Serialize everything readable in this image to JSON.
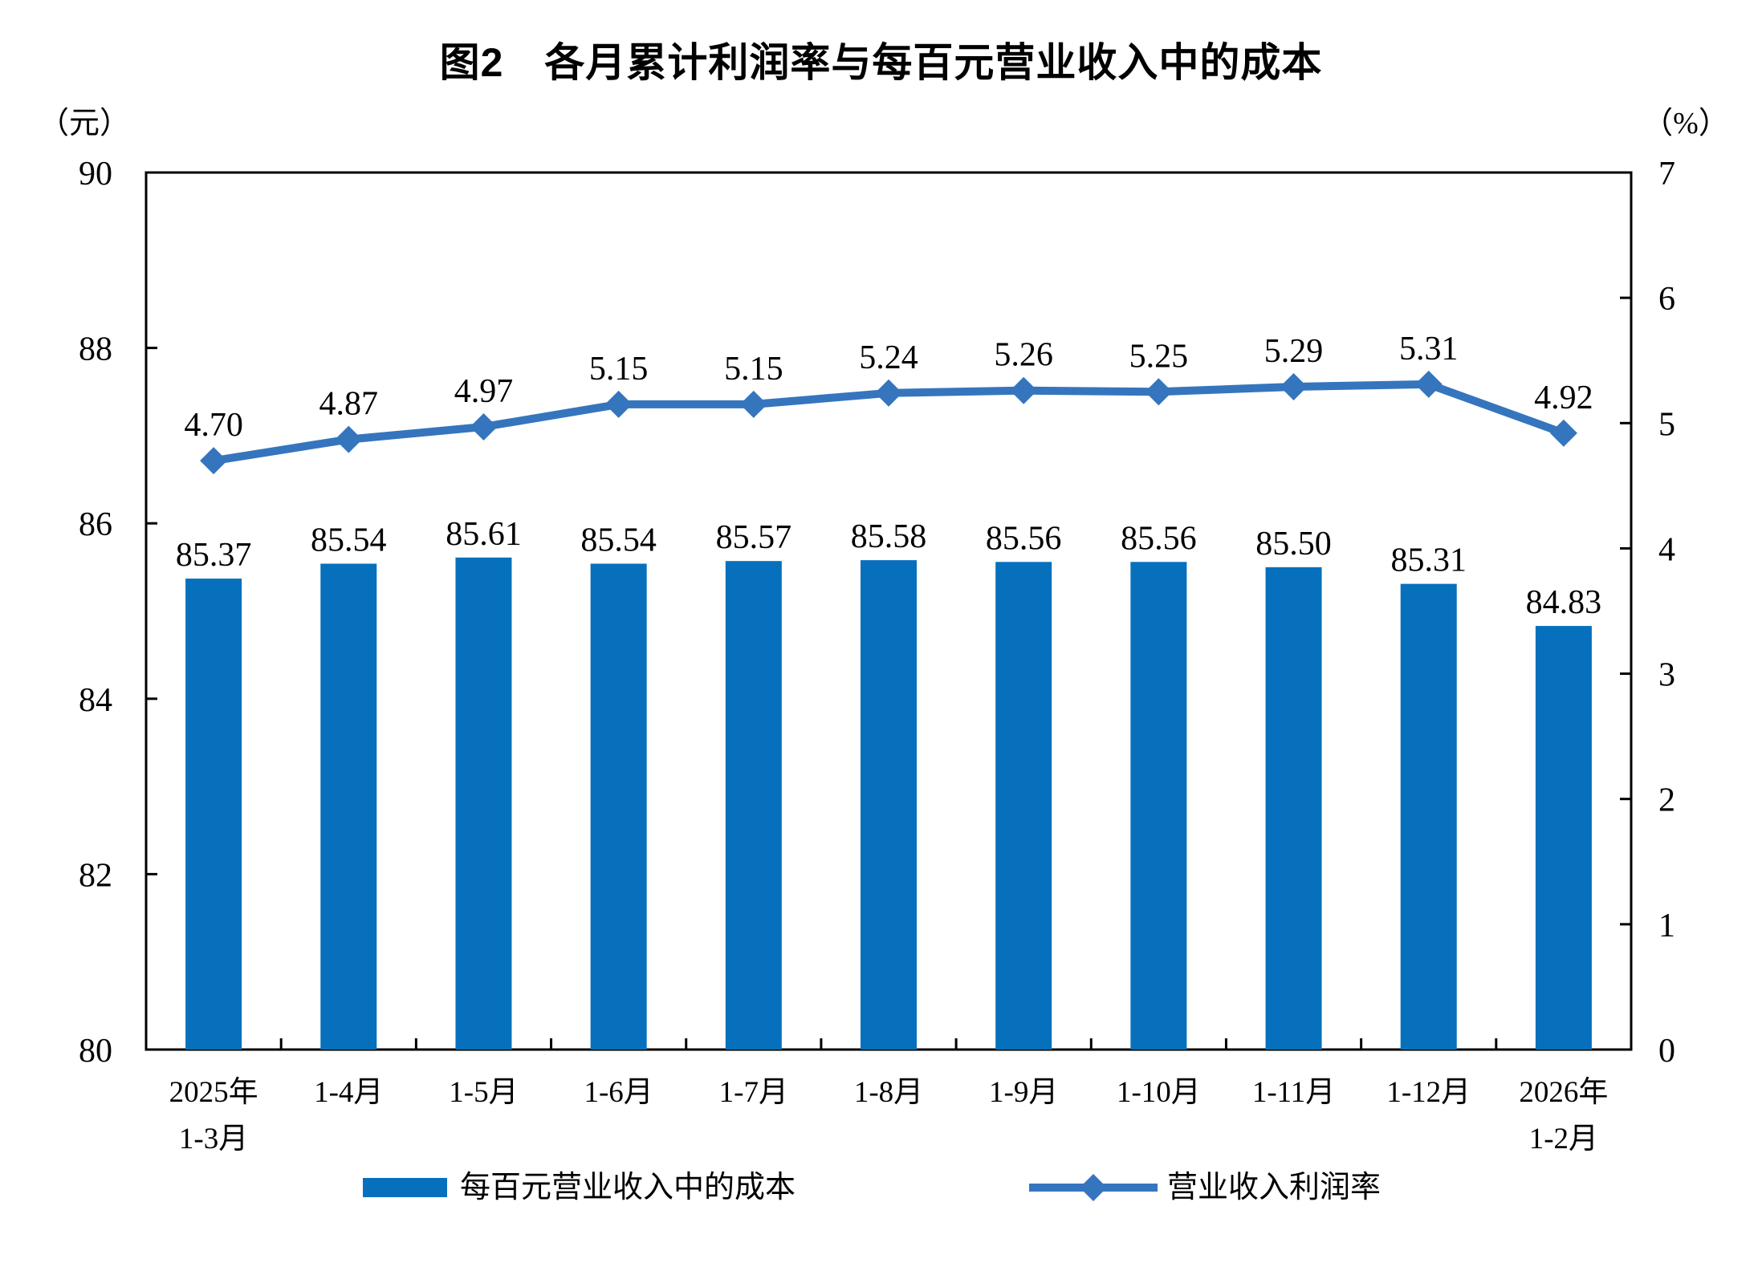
{
  "page_background": "#ffffff",
  "chart_data": {
    "type": "combo-bar-line",
    "title": "图2　各月累计利润率与每百元营业收入中的成本",
    "categories": [
      [
        "2025年",
        "1-3月"
      ],
      [
        "1-4月"
      ],
      [
        "1-5月"
      ],
      [
        "1-6月"
      ],
      [
        "1-7月"
      ],
      [
        "1-8月"
      ],
      [
        "1-9月"
      ],
      [
        "1-10月"
      ],
      [
        "1-11月"
      ],
      [
        "1-12月"
      ],
      [
        "2026年",
        "1-2月"
      ]
    ],
    "series": [
      {
        "name": "每百元营业收入中的成本",
        "type": "bar",
        "axis": "left",
        "color": "#0770BD",
        "values": [
          85.37,
          85.54,
          85.61,
          85.54,
          85.57,
          85.58,
          85.56,
          85.56,
          85.5,
          85.31,
          84.83
        ]
      },
      {
        "name": "营业收入利润率",
        "type": "line",
        "marker": "diamond",
        "axis": "right",
        "color": "#3575BE",
        "values": [
          4.7,
          4.87,
          4.97,
          5.15,
          5.15,
          5.24,
          5.26,
          5.25,
          5.29,
          5.31,
          4.92
        ]
      }
    ],
    "left_axis": {
      "unit": "（元）",
      "ticks": [
        90,
        88,
        86,
        84,
        82,
        80
      ],
      "ylim": [
        80,
        90
      ]
    },
    "right_axis": {
      "unit": "（%）",
      "ticks": [
        7,
        6,
        5,
        4,
        3,
        2,
        1,
        0
      ],
      "ylim": [
        0,
        7
      ]
    },
    "grid": false,
    "legend_position": "bottom",
    "legend": [
      {
        "label": "每百元营业收入中的成本",
        "swatch": "bar-rect",
        "color": "#0770BD"
      },
      {
        "label": "营业收入利润率",
        "swatch": "line-diamond",
        "color": "#3575BE"
      }
    ],
    "value_label_decimals": 2
  }
}
